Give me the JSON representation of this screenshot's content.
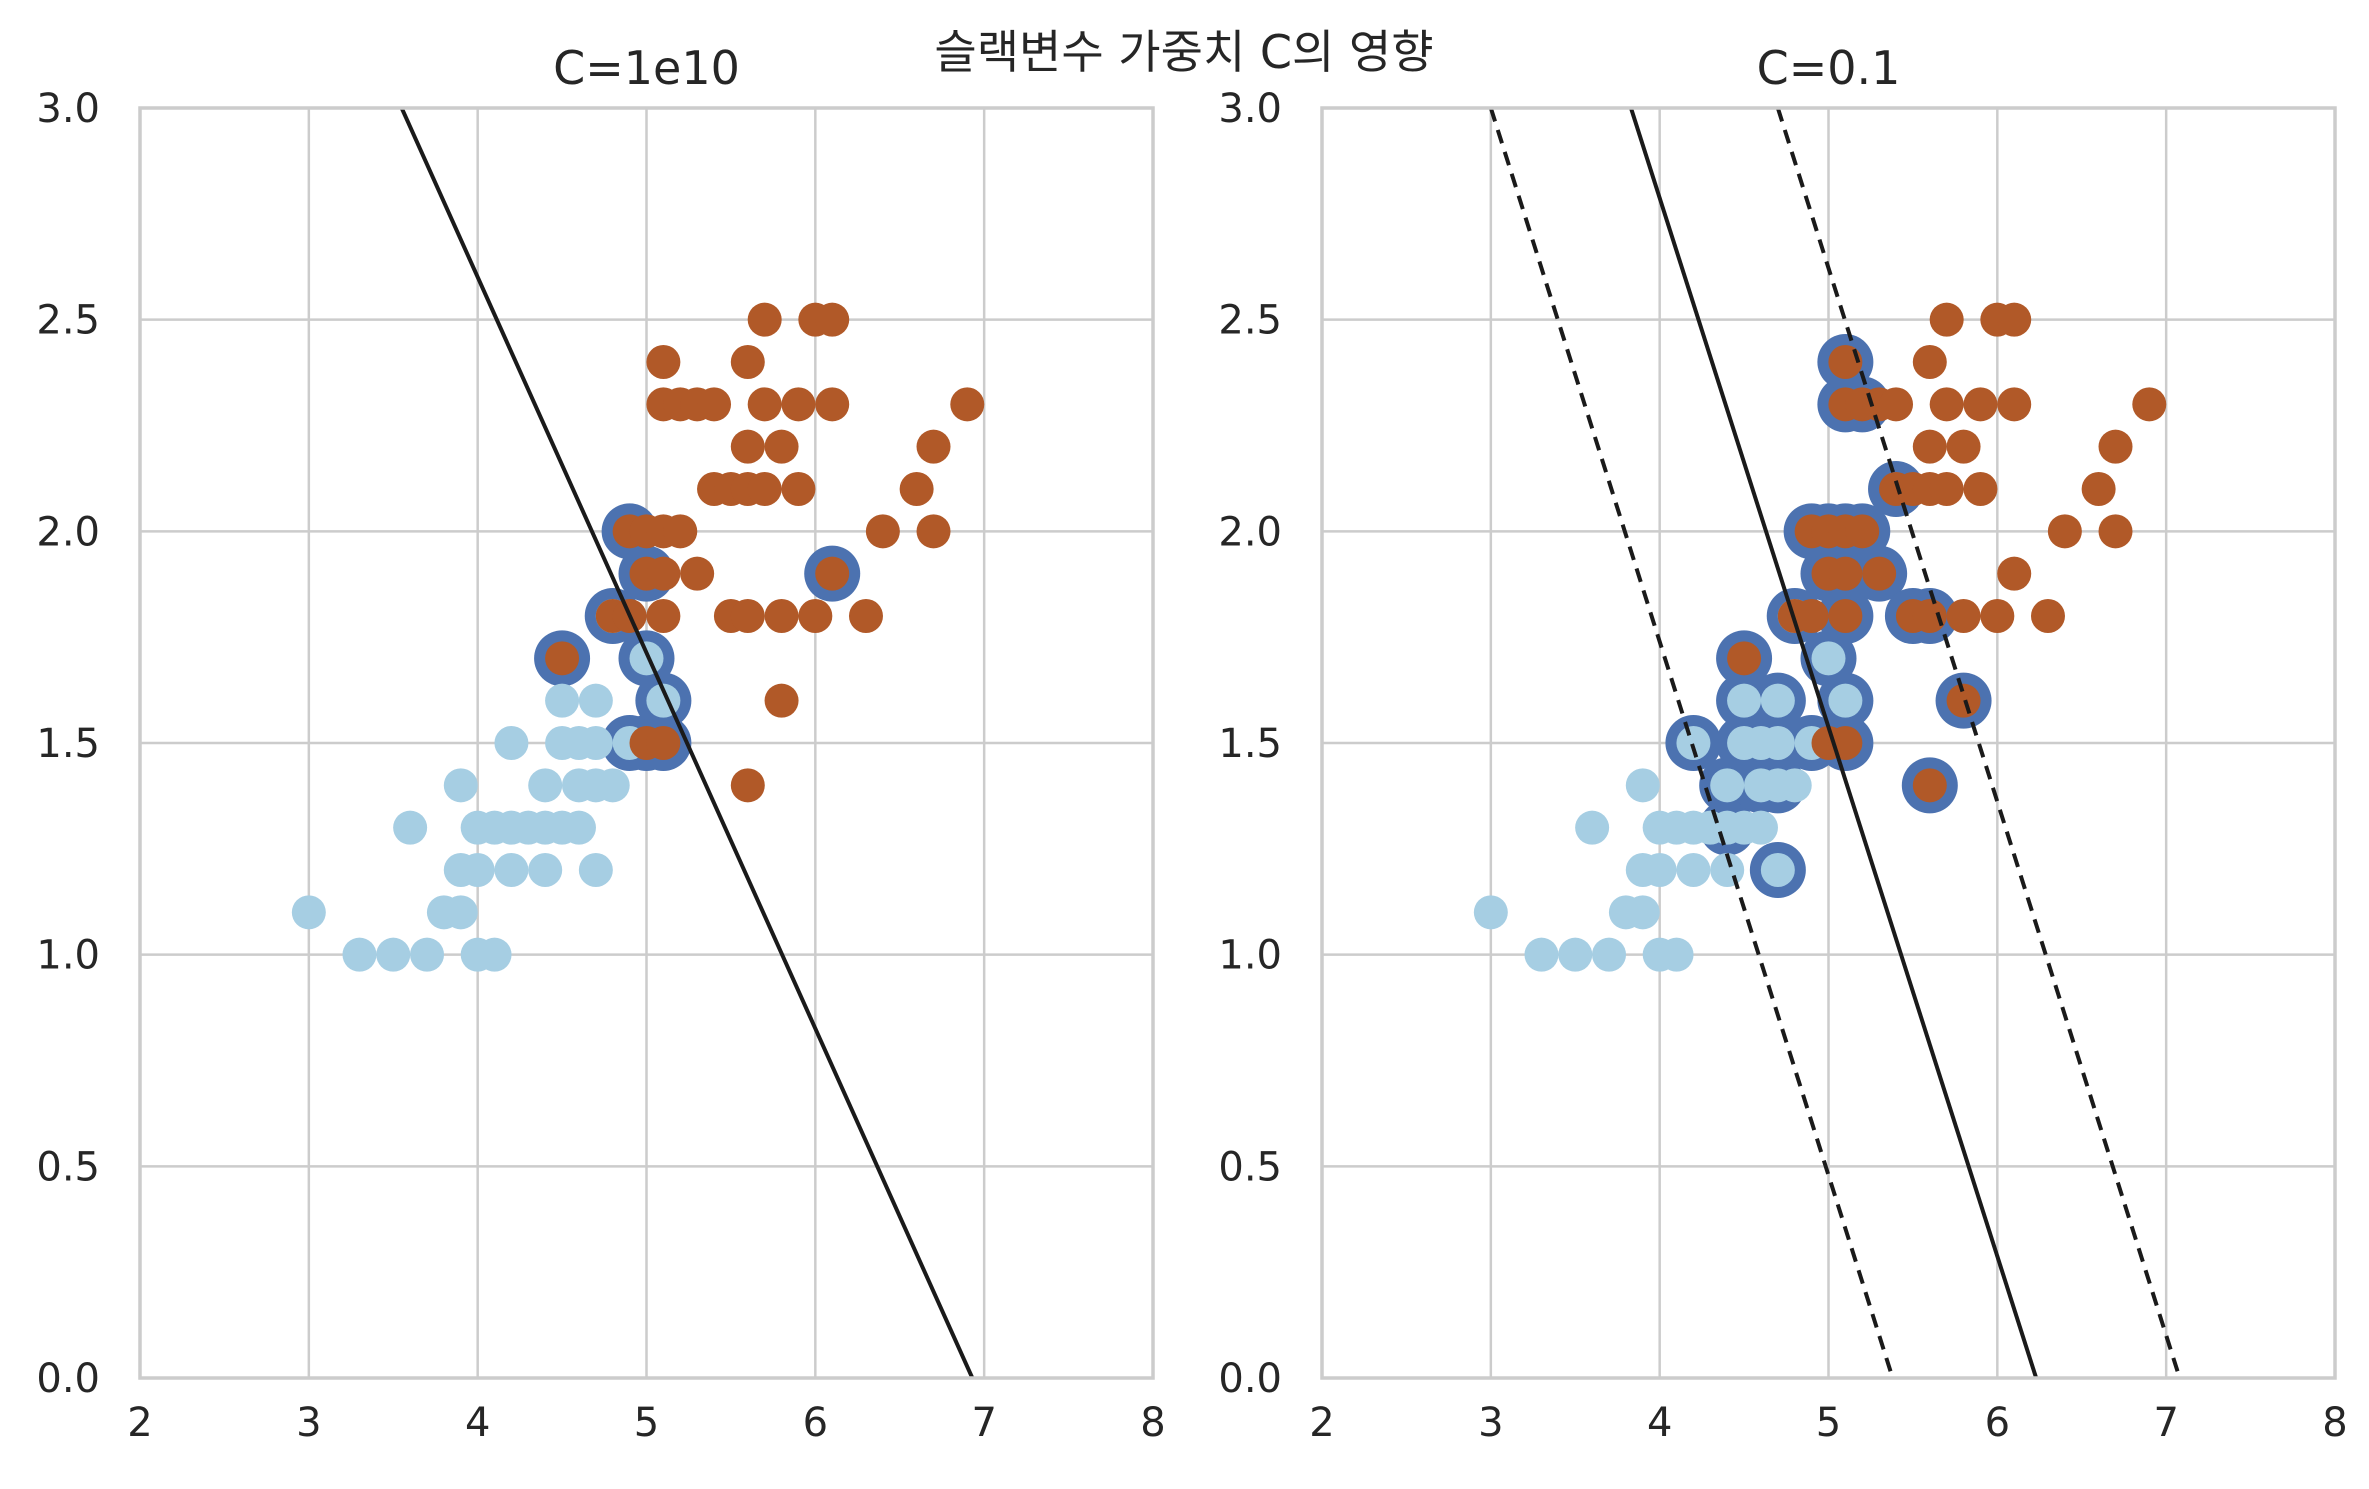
{
  "figure": {
    "suptitle": "슬랙변수 가중치 C의 영향"
  },
  "colors": {
    "class0": "#a6cee3",
    "class1": "#b15928",
    "support_vector_ring": "#4c72b0",
    "line": "#1a1a1a"
  },
  "chart_data": [
    {
      "type": "scatter",
      "title": "C=1e10",
      "xlim": [
        2,
        8
      ],
      "ylim": [
        0,
        3.0
      ],
      "xticks": [
        "2",
        "3",
        "4",
        "5",
        "6",
        "7",
        "8"
      ],
      "yticks": [
        "0.0",
        "0.5",
        "1.0",
        "1.5",
        "2.0",
        "2.5",
        "3.0"
      ],
      "grid": true,
      "series": [
        {
          "class": 0,
          "points": [
            [
              3.0,
              1.1
            ],
            [
              3.3,
              1.0
            ],
            [
              3.5,
              1.0
            ],
            [
              3.7,
              1.0
            ],
            [
              3.6,
              1.3
            ],
            [
              3.8,
              1.1
            ],
            [
              3.9,
              1.1
            ],
            [
              3.9,
              1.2
            ],
            [
              3.9,
              1.4
            ],
            [
              4.0,
              1.0
            ],
            [
              4.1,
              1.0
            ],
            [
              4.0,
              1.2
            ],
            [
              4.0,
              1.3
            ],
            [
              4.1,
              1.3
            ],
            [
              4.2,
              1.3
            ],
            [
              4.2,
              1.2
            ],
            [
              4.2,
              1.5
            ],
            [
              4.3,
              1.3
            ],
            [
              4.4,
              1.2
            ],
            [
              4.4,
              1.3
            ],
            [
              4.4,
              1.4
            ],
            [
              4.5,
              1.3
            ],
            [
              4.5,
              1.5
            ],
            [
              4.5,
              1.6
            ],
            [
              4.6,
              1.3
            ],
            [
              4.6,
              1.4
            ],
            [
              4.6,
              1.5
            ],
            [
              4.7,
              1.2
            ],
            [
              4.7,
              1.4
            ],
            [
              4.7,
              1.5
            ],
            [
              4.7,
              1.6
            ],
            [
              4.8,
              1.4
            ],
            [
              4.8,
              1.8
            ],
            [
              4.9,
              1.5
            ],
            [
              5.0,
              1.7
            ],
            [
              5.1,
              1.6
            ]
          ]
        },
        {
          "class": 1,
          "points": [
            [
              4.5,
              1.7
            ],
            [
              4.8,
              1.8
            ],
            [
              4.9,
              1.8
            ],
            [
              4.9,
              2.0
            ],
            [
              5.0,
              1.5
            ],
            [
              5.0,
              1.9
            ],
            [
              5.0,
              2.0
            ],
            [
              5.1,
              1.5
            ],
            [
              5.1,
              1.8
            ],
            [
              5.1,
              1.9
            ],
            [
              5.1,
              2.0
            ],
            [
              5.2,
              2.0
            ],
            [
              5.3,
              1.9
            ],
            [
              5.1,
              2.3
            ],
            [
              5.1,
              2.4
            ],
            [
              5.2,
              2.3
            ],
            [
              5.3,
              2.3
            ],
            [
              5.4,
              2.3
            ],
            [
              5.4,
              2.1
            ],
            [
              5.5,
              1.8
            ],
            [
              5.5,
              2.1
            ],
            [
              5.6,
              1.4
            ],
            [
              5.6,
              1.8
            ],
            [
              5.6,
              2.1
            ],
            [
              5.6,
              2.2
            ],
            [
              5.6,
              2.4
            ],
            [
              5.7,
              2.1
            ],
            [
              5.7,
              2.3
            ],
            [
              5.7,
              2.5
            ],
            [
              5.8,
              1.6
            ],
            [
              5.8,
              1.8
            ],
            [
              5.8,
              2.2
            ],
            [
              5.9,
              2.1
            ],
            [
              5.9,
              2.3
            ],
            [
              6.0,
              1.8
            ],
            [
              6.0,
              2.5
            ],
            [
              6.1,
              1.9
            ],
            [
              6.1,
              2.3
            ],
            [
              6.1,
              2.5
            ],
            [
              6.3,
              1.8
            ],
            [
              6.4,
              2.0
            ],
            [
              6.6,
              2.1
            ],
            [
              6.7,
              2.0
            ],
            [
              6.7,
              2.2
            ],
            [
              6.9,
              2.3
            ]
          ]
        }
      ],
      "support_vectors": [
        [
          4.5,
          1.7
        ],
        [
          4.8,
          1.8
        ],
        [
          4.9,
          2.0
        ],
        [
          5.0,
          1.5
        ],
        [
          5.0,
          1.7
        ],
        [
          5.0,
          1.9
        ],
        [
          5.1,
          1.5
        ],
        [
          5.1,
          1.6
        ],
        [
          4.9,
          1.5
        ],
        [
          6.1,
          1.9
        ]
      ],
      "decision_line": [
        [
          3.55,
          3.0
        ],
        [
          6.93,
          0.0
        ]
      ],
      "margin_lines": []
    },
    {
      "type": "scatter",
      "title": "C=0.1",
      "xlim": [
        2,
        8
      ],
      "ylim": [
        0,
        3.0
      ],
      "xticks": [
        "2",
        "3",
        "4",
        "5",
        "6",
        "7",
        "8"
      ],
      "yticks": [
        "0.0",
        "0.5",
        "1.0",
        "1.5",
        "2.0",
        "2.5",
        "3.0"
      ],
      "grid": true,
      "series": [
        {
          "class": 0,
          "points": [
            [
              3.0,
              1.1
            ],
            [
              3.3,
              1.0
            ],
            [
              3.5,
              1.0
            ],
            [
              3.7,
              1.0
            ],
            [
              3.6,
              1.3
            ],
            [
              3.8,
              1.1
            ],
            [
              3.9,
              1.1
            ],
            [
              3.9,
              1.2
            ],
            [
              3.9,
              1.4
            ],
            [
              4.0,
              1.0
            ],
            [
              4.1,
              1.0
            ],
            [
              4.0,
              1.2
            ],
            [
              4.0,
              1.3
            ],
            [
              4.1,
              1.3
            ],
            [
              4.2,
              1.3
            ],
            [
              4.2,
              1.2
            ],
            [
              4.2,
              1.5
            ],
            [
              4.3,
              1.3
            ],
            [
              4.4,
              1.2
            ],
            [
              4.4,
              1.3
            ],
            [
              4.4,
              1.4
            ],
            [
              4.5,
              1.3
            ],
            [
              4.5,
              1.5
            ],
            [
              4.5,
              1.6
            ],
            [
              4.6,
              1.3
            ],
            [
              4.6,
              1.4
            ],
            [
              4.6,
              1.5
            ],
            [
              4.7,
              1.2
            ],
            [
              4.7,
              1.4
            ],
            [
              4.7,
              1.5
            ],
            [
              4.7,
              1.6
            ],
            [
              4.8,
              1.4
            ],
            [
              4.8,
              1.8
            ],
            [
              4.9,
              1.5
            ],
            [
              5.0,
              1.7
            ],
            [
              5.1,
              1.6
            ]
          ]
        },
        {
          "class": 1,
          "points": [
            [
              4.5,
              1.7
            ],
            [
              4.8,
              1.8
            ],
            [
              4.9,
              1.8
            ],
            [
              4.9,
              2.0
            ],
            [
              5.0,
              1.5
            ],
            [
              5.0,
              1.9
            ],
            [
              5.0,
              2.0
            ],
            [
              5.1,
              1.5
            ],
            [
              5.1,
              1.8
            ],
            [
              5.1,
              1.9
            ],
            [
              5.1,
              2.0
            ],
            [
              5.2,
              2.0
            ],
            [
              5.3,
              1.9
            ],
            [
              5.1,
              2.3
            ],
            [
              5.1,
              2.4
            ],
            [
              5.2,
              2.3
            ],
            [
              5.3,
              2.3
            ],
            [
              5.4,
              2.3
            ],
            [
              5.4,
              2.1
            ],
            [
              5.5,
              1.8
            ],
            [
              5.5,
              2.1
            ],
            [
              5.6,
              1.4
            ],
            [
              5.6,
              1.8
            ],
            [
              5.6,
              2.1
            ],
            [
              5.6,
              2.2
            ],
            [
              5.6,
              2.4
            ],
            [
              5.7,
              2.1
            ],
            [
              5.7,
              2.3
            ],
            [
              5.7,
              2.5
            ],
            [
              5.8,
              1.6
            ],
            [
              5.8,
              1.8
            ],
            [
              5.8,
              2.2
            ],
            [
              5.9,
              2.1
            ],
            [
              5.9,
              2.3
            ],
            [
              6.0,
              1.8
            ],
            [
              6.0,
              2.5
            ],
            [
              6.1,
              1.9
            ],
            [
              6.1,
              2.3
            ],
            [
              6.1,
              2.5
            ],
            [
              6.3,
              1.8
            ],
            [
              6.4,
              2.0
            ],
            [
              6.6,
              2.1
            ],
            [
              6.7,
              2.0
            ],
            [
              6.7,
              2.2
            ],
            [
              6.9,
              2.3
            ]
          ]
        }
      ],
      "support_vectors": [
        [
          4.2,
          1.5
        ],
        [
          4.4,
          1.4
        ],
        [
          4.4,
          1.3
        ],
        [
          4.5,
          1.5
        ],
        [
          4.5,
          1.6
        ],
        [
          4.5,
          1.7
        ],
        [
          4.6,
          1.4
        ],
        [
          4.6,
          1.5
        ],
        [
          4.7,
          1.2
        ],
        [
          4.7,
          1.4
        ],
        [
          4.7,
          1.5
        ],
        [
          4.7,
          1.6
        ],
        [
          4.8,
          1.8
        ],
        [
          4.9,
          1.5
        ],
        [
          4.9,
          2.0
        ],
        [
          5.0,
          1.7
        ],
        [
          5.0,
          1.9
        ],
        [
          5.0,
          2.0
        ],
        [
          5.1,
          1.5
        ],
        [
          5.1,
          1.6
        ],
        [
          5.1,
          1.8
        ],
        [
          5.1,
          1.9
        ],
        [
          5.1,
          2.0
        ],
        [
          5.2,
          2.0
        ],
        [
          5.3,
          1.9
        ],
        [
          5.1,
          2.3
        ],
        [
          5.1,
          2.4
        ],
        [
          5.2,
          2.3
        ],
        [
          5.4,
          2.1
        ],
        [
          5.5,
          1.8
        ],
        [
          5.6,
          1.8
        ],
        [
          5.6,
          1.4
        ],
        [
          5.8,
          1.6
        ]
      ],
      "decision_line": [
        [
          3.83,
          3.0
        ],
        [
          6.23,
          0.0
        ]
      ],
      "margin_lines": [
        [
          [
            3.0,
            3.0
          ],
          [
            5.38,
            0.0
          ]
        ],
        [
          [
            4.7,
            3.0
          ],
          [
            7.08,
            0.0
          ]
        ]
      ]
    }
  ]
}
